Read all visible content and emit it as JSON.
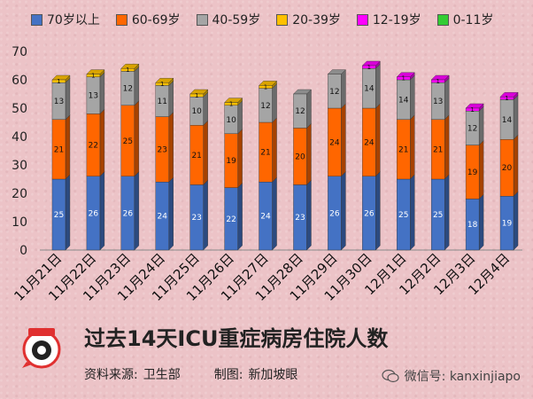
{
  "legend": [
    {
      "label": "70岁以上",
      "color": "#4472c4"
    },
    {
      "label": "60-69岁",
      "color": "#ff6600"
    },
    {
      "label": "40-59岁",
      "color": "#a5a5a5"
    },
    {
      "label": "20-39岁",
      "color": "#ffc000"
    },
    {
      "label": "12-19岁",
      "color": "#ff00ff"
    },
    {
      "label": "0-11岁",
      "color": "#33cc33"
    }
  ],
  "chart_data": {
    "type": "bar",
    "stacked": true,
    "title": "过去14天ICU重症病房住院人数",
    "categories": [
      "11月21日",
      "11月22日",
      "11月23日",
      "11月24日",
      "11月25日",
      "11月26日",
      "11月27日",
      "11月28日",
      "11月29日",
      "11月30日",
      "12月1日",
      "12月2日",
      "12月3日",
      "12月4日"
    ],
    "yticks": [
      0,
      10,
      20,
      30,
      40,
      50,
      60,
      70
    ],
    "ylim": [
      0,
      70
    ],
    "series": [
      {
        "name": "70岁以上",
        "color": "#4472c4",
        "values": [
          25,
          26,
          26,
          24,
          23,
          22,
          24,
          23,
          26,
          26,
          25,
          25,
          18,
          19
        ]
      },
      {
        "name": "60-69岁",
        "color": "#ff6600",
        "values": [
          21,
          22,
          25,
          23,
          21,
          19,
          21,
          20,
          24,
          24,
          21,
          21,
          19,
          20
        ]
      },
      {
        "name": "40-59岁",
        "color": "#a5a5a5",
        "values": [
          13,
          13,
          12,
          11,
          10,
          10,
          12,
          12,
          12,
          14,
          14,
          13,
          12,
          14
        ]
      },
      {
        "name": "20-39岁",
        "color": "#ffc000",
        "values": [
          1,
          1,
          1,
          1,
          1,
          1,
          1,
          0,
          0,
          0,
          0,
          0,
          0,
          0
        ]
      },
      {
        "name": "12-19岁",
        "color": "#ff00ff",
        "values": [
          0,
          0,
          0,
          0,
          0,
          0,
          0,
          0,
          0,
          1,
          1,
          1,
          1,
          1
        ]
      },
      {
        "name": "0-11岁",
        "color": "#33cc33",
        "values": [
          0,
          0,
          0,
          0,
          0,
          0,
          0,
          0,
          0,
          0,
          0,
          0,
          0,
          0
        ]
      }
    ],
    "labeled_series": [
      "70岁以上",
      "60-69岁",
      "40-59岁",
      "20-39岁",
      "12-19岁"
    ]
  },
  "footer": {
    "source_label": "资料来源:",
    "source_value": "卫生部",
    "made_label": "制图:",
    "made_value": "新加坡眼",
    "wechat_text": "微信号: kanxinjiapo",
    "logo_text": "新加坡眼"
  }
}
